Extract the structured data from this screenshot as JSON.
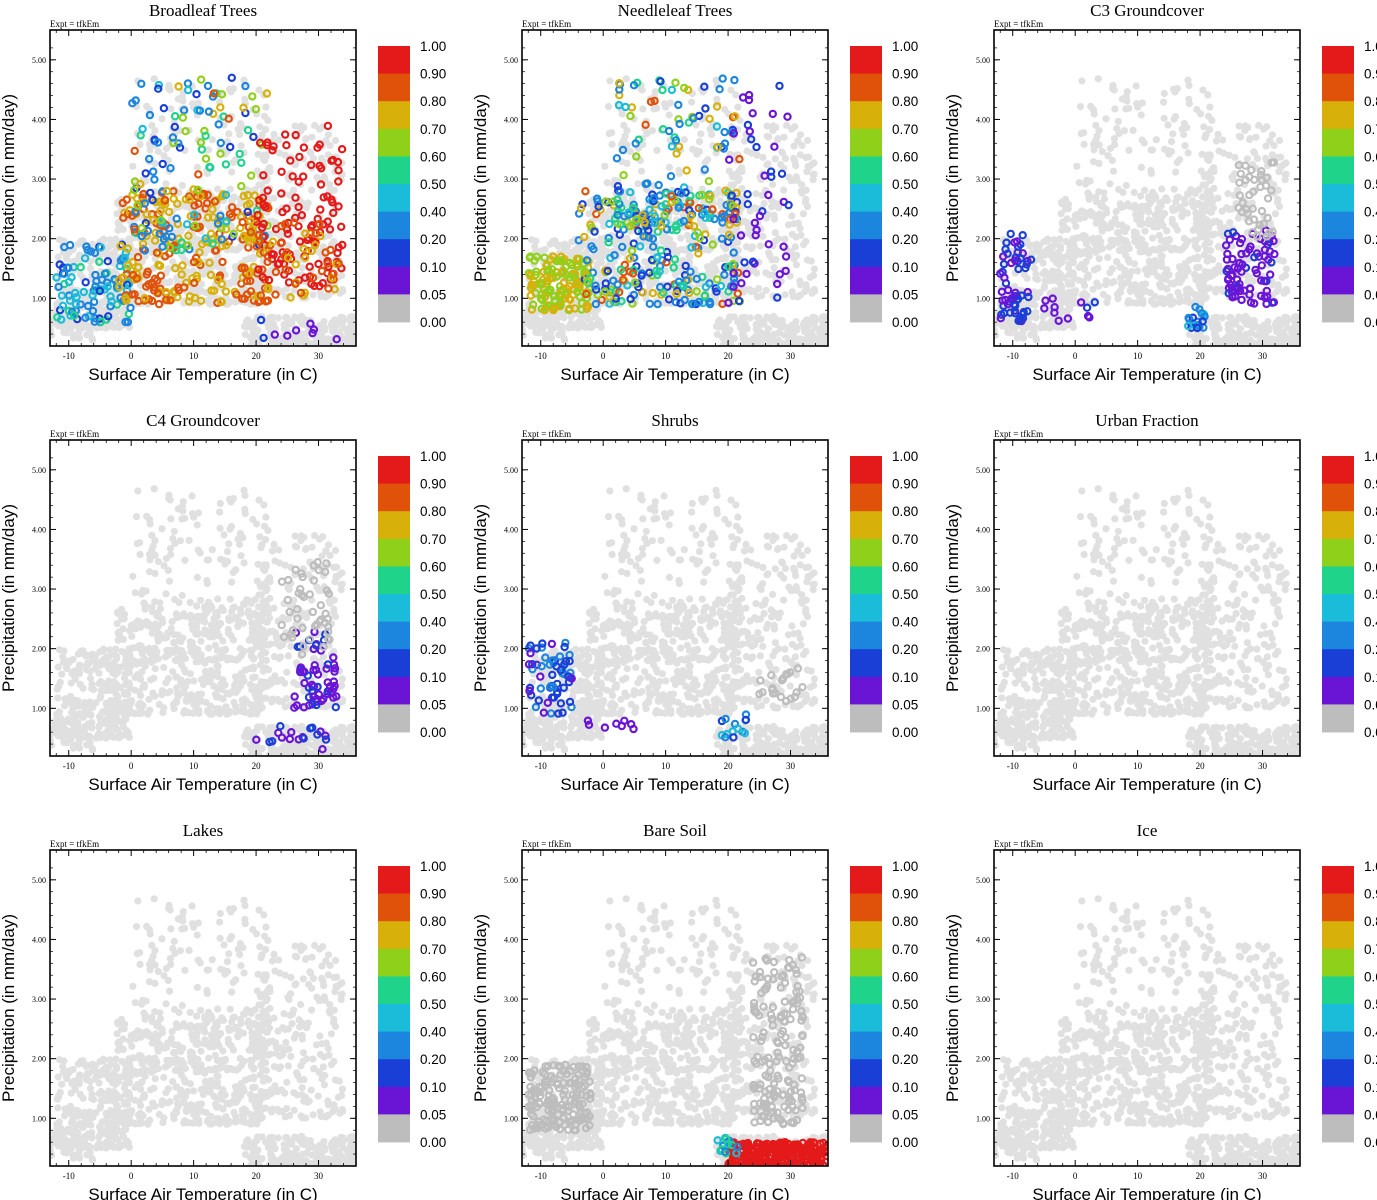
{
  "expt_label": "Expt = tfkEm",
  "colorbar": {
    "labels": [
      "1.00",
      "0.90",
      "0.80",
      "0.70",
      "0.60",
      "0.50",
      "0.40",
      "0.20",
      "0.10",
      "0.05",
      "0.00"
    ],
    "colors": [
      "#e41a1a",
      "#e0520a",
      "#d8b00a",
      "#8fd11a",
      "#1fd38a",
      "#1bbcd9",
      "#1c86df",
      "#1a3fd6",
      "#6a14d6",
      "#bdbdbd"
    ],
    "background_point_color": "#e0e0e0"
  },
  "chart_data": [
    {
      "type": "scatter",
      "title": "Broadleaf Trees",
      "xlabel": "Surface Air Temperature (in C)",
      "ylabel": "Precipitation (in mm/day)",
      "xlim": [
        -13,
        36
      ],
      "ylim": [
        0.2,
        5.5
      ],
      "xticks": [
        "-10",
        "0",
        "10",
        "20",
        "30"
      ],
      "yticks": [
        "1.00",
        "2.00",
        "3.00",
        "4.00",
        "5.00"
      ],
      "colored_clusters": [
        {
          "x_range": [
            -12,
            0
          ],
          "y_range": [
            0.6,
            1.9
          ],
          "fraction": [
            0.1,
            0.6
          ],
          "density": 95
        },
        {
          "x_range": [
            -2,
            22
          ],
          "y_range": [
            0.9,
            2.8
          ],
          "fraction": [
            0.75,
            0.85
          ],
          "density": 240
        },
        {
          "x_range": [
            0,
            22
          ],
          "y_range": [
            1.8,
            4.7
          ],
          "fraction": [
            0.1,
            0.85
          ],
          "density": 140
        },
        {
          "x_range": [
            20,
            34
          ],
          "y_range": [
            1.2,
            3.9
          ],
          "fraction": [
            0.9,
            1.0
          ],
          "density": 110
        },
        {
          "x_range": [
            18,
            34
          ],
          "y_range": [
            1.0,
            2.3
          ],
          "fraction": [
            0.75,
            0.85
          ],
          "density": 60
        },
        {
          "x_range": [
            20,
            34
          ],
          "y_range": [
            0.3,
            0.7
          ],
          "fraction": [
            0.05,
            0.12
          ],
          "density": 9
        }
      ]
    },
    {
      "type": "scatter",
      "title": "Needleleaf Trees",
      "xlabel": "Surface Air Temperature (in C)",
      "ylabel": "Precipitation (in mm/day)",
      "xlim": [
        -13,
        36
      ],
      "ylim": [
        0.2,
        5.5
      ],
      "xticks": [
        "-10",
        "0",
        "10",
        "20",
        "30"
      ],
      "yticks": [
        "1.00",
        "2.00",
        "3.00",
        "4.00",
        "5.00"
      ],
      "colored_clusters": [
        {
          "x_range": [
            -12,
            -2
          ],
          "y_range": [
            0.8,
            1.7
          ],
          "fraction": [
            0.65,
            0.75
          ],
          "density": 140
        },
        {
          "x_range": [
            -4,
            22
          ],
          "y_range": [
            0.9,
            2.8
          ],
          "fraction": [
            0.1,
            0.85
          ],
          "density": 260
        },
        {
          "x_range": [
            2,
            22
          ],
          "y_range": [
            2.2,
            4.7
          ],
          "fraction": [
            0.1,
            0.85
          ],
          "density": 120
        },
        {
          "x_range": [
            20,
            30
          ],
          "y_range": [
            0.9,
            4.6
          ],
          "fraction": [
            0.05,
            0.12
          ],
          "density": 45
        }
      ]
    },
    {
      "type": "scatter",
      "title": "C3 Groundcover",
      "xlabel": "Surface Air Temperature (in C)",
      "ylabel": "Precipitation (in mm/day)",
      "xlim": [
        -13,
        36
      ],
      "ylim": [
        0.2,
        5.5
      ],
      "xticks": [
        "-10",
        "0",
        "10",
        "20",
        "30"
      ],
      "yticks": [
        "1.00",
        "2.00",
        "3.00",
        "4.00",
        "5.00"
      ],
      "colored_clusters": [
        {
          "x_range": [
            -12,
            -7
          ],
          "y_range": [
            0.6,
            2.1
          ],
          "fraction": [
            0.05,
            0.2
          ],
          "density": 60
        },
        {
          "x_range": [
            -6,
            5
          ],
          "y_range": [
            0.6,
            1.0
          ],
          "fraction": [
            0.05,
            0.12
          ],
          "density": 12
        },
        {
          "x_range": [
            18,
            21
          ],
          "y_range": [
            0.5,
            0.9
          ],
          "fraction": [
            0.1,
            0.5
          ],
          "density": 18
        },
        {
          "x_range": [
            24,
            32
          ],
          "y_range": [
            0.9,
            2.2
          ],
          "fraction": [
            0.05,
            0.12
          ],
          "density": 80
        },
        {
          "x_range": [
            26,
            32
          ],
          "y_range": [
            2.0,
            3.3
          ],
          "fraction": [
            0.0,
            0.0
          ],
          "density": 40
        }
      ]
    },
    {
      "type": "scatter",
      "title": "C4 Groundcover",
      "xlabel": "Surface Air Temperature (in C)",
      "ylabel": "Precipitation (in mm/day)",
      "xlim": [
        -13,
        36
      ],
      "ylim": [
        0.2,
        5.5
      ],
      "xticks": [
        "-10",
        "0",
        "10",
        "20",
        "30"
      ],
      "yticks": [
        "1.00",
        "2.00",
        "3.00",
        "4.00",
        "5.00"
      ],
      "colored_clusters": [
        {
          "x_range": [
            26,
            33
          ],
          "y_range": [
            1.0,
            2.3
          ],
          "fraction": [
            0.05,
            0.12
          ],
          "density": 60
        },
        {
          "x_range": [
            20,
            33
          ],
          "y_range": [
            0.3,
            0.7
          ],
          "fraction": [
            0.05,
            0.15
          ],
          "density": 18
        },
        {
          "x_range": [
            24,
            32
          ],
          "y_range": [
            1.9,
            3.6
          ],
          "fraction": [
            0.0,
            0.0
          ],
          "density": 45
        }
      ]
    },
    {
      "type": "scatter",
      "title": "Shrubs",
      "xlabel": "Surface Air Temperature (in C)",
      "ylabel": "Precipitation (in mm/day)",
      "xlim": [
        -13,
        36
      ],
      "ylim": [
        0.2,
        5.5
      ],
      "xticks": [
        "-10",
        "0",
        "10",
        "20",
        "30"
      ],
      "yticks": [
        "1.00",
        "2.00",
        "3.00",
        "4.00",
        "5.00"
      ],
      "colored_clusters": [
        {
          "x_range": [
            -12,
            -5
          ],
          "y_range": [
            0.9,
            2.1
          ],
          "fraction": [
            0.05,
            0.3
          ],
          "density": 60
        },
        {
          "x_range": [
            -4,
            5
          ],
          "y_range": [
            0.6,
            0.8
          ],
          "fraction": [
            0.05,
            0.1
          ],
          "density": 8
        },
        {
          "x_range": [
            18,
            24
          ],
          "y_range": [
            0.5,
            0.9
          ],
          "fraction": [
            0.1,
            0.5
          ],
          "density": 14
        },
        {
          "x_range": [
            25,
            32
          ],
          "y_range": [
            1.1,
            1.7
          ],
          "fraction": [
            0.0,
            0.0
          ],
          "density": 20
        }
      ]
    },
    {
      "type": "scatter",
      "title": "Urban Fraction",
      "xlabel": "Surface Air Temperature (in C)",
      "ylabel": "Precipitation (in mm/day)",
      "xlim": [
        -13,
        36
      ],
      "ylim": [
        0.2,
        5.5
      ],
      "xticks": [
        "-10",
        "0",
        "10",
        "20",
        "30"
      ],
      "yticks": [
        "1.00",
        "2.00",
        "3.00",
        "4.00",
        "5.00"
      ],
      "colored_clusters": []
    },
    {
      "type": "scatter",
      "title": "Lakes",
      "xlabel": "Surface Air Temperature (in C)",
      "ylabel": "Precipitation (in mm/day)",
      "xlim": [
        -13,
        36
      ],
      "ylim": [
        0.2,
        5.5
      ],
      "xticks": [
        "-10",
        "0",
        "10",
        "20",
        "30"
      ],
      "yticks": [
        "1.00",
        "2.00",
        "3.00",
        "4.00",
        "5.00"
      ],
      "colored_clusters": []
    },
    {
      "type": "scatter",
      "title": "Bare Soil",
      "xlabel": "Surface Air Temperature (in C)",
      "ylabel": "Precipitation (in mm/day)",
      "xlim": [
        -13,
        36
      ],
      "ylim": [
        0.2,
        5.5
      ],
      "xticks": [
        "-10",
        "0",
        "10",
        "20",
        "30"
      ],
      "yticks": [
        "1.00",
        "2.00",
        "3.00",
        "4.00",
        "5.00"
      ],
      "colored_clusters": [
        {
          "x_range": [
            -12,
            -2
          ],
          "y_range": [
            0.8,
            1.9
          ],
          "fraction": [
            0.0,
            0.0
          ],
          "density": 160
        },
        {
          "x_range": [
            24,
            32
          ],
          "y_range": [
            0.9,
            3.7
          ],
          "fraction": [
            0.0,
            0.0
          ],
          "density": 160
        },
        {
          "x_range": [
            20,
            36
          ],
          "y_range": [
            0.2,
            0.6
          ],
          "fraction": [
            0.9,
            1.0
          ],
          "density": 230
        },
        {
          "x_range": [
            18,
            22
          ],
          "y_range": [
            0.4,
            0.7
          ],
          "fraction": [
            0.3,
            0.6
          ],
          "density": 14
        }
      ]
    },
    {
      "type": "scatter",
      "title": "Ice",
      "xlabel": "Surface Air Temperature (in C)",
      "ylabel": "Precipitation (in mm/day)",
      "xlim": [
        -13,
        36
      ],
      "ylim": [
        0.2,
        5.5
      ],
      "xticks": [
        "-10",
        "0",
        "10",
        "20",
        "30"
      ],
      "yticks": [
        "1.00",
        "2.00",
        "3.00",
        "4.00",
        "5.00"
      ],
      "colored_clusters": []
    }
  ]
}
